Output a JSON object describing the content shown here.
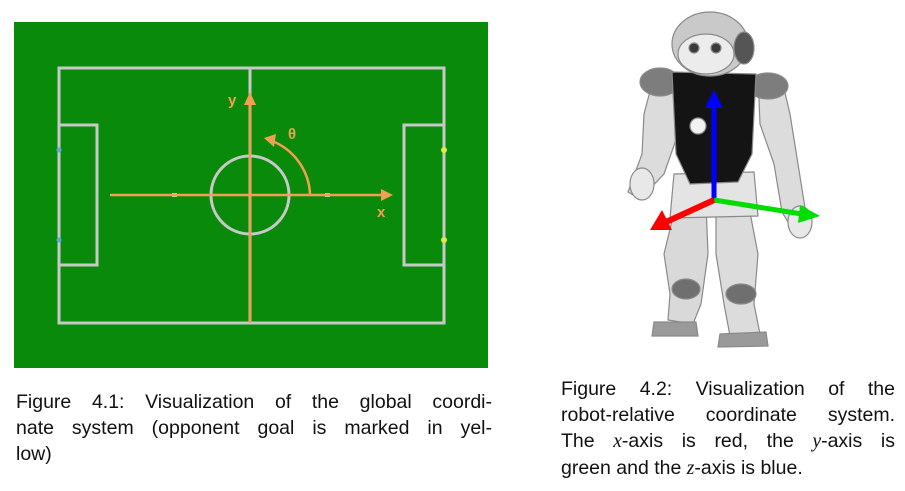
{
  "figure1": {
    "axis_x_label": "x",
    "axis_y_label": "y",
    "angle_label": "θ",
    "colors": {
      "field": "#0a8a0a",
      "lines": "#c8c8c8",
      "axes": "#f0a050",
      "opponent_goal": "#e6e64a",
      "own_goal": "#5fa8d8"
    },
    "caption": {
      "line1": "Figure 4.1:  Visualization of the global coordi-",
      "line2": "nate system (opponent goal is marked in yel-",
      "line3": "low)"
    }
  },
  "figure2": {
    "colors": {
      "x_axis": "#ff0000",
      "y_axis": "#00dd00",
      "z_axis": "#0000ff",
      "robot_body": "#d8d8d8",
      "robot_chest": "#111111"
    },
    "caption": {
      "line1": "Figure 4.2:  Visualization of the",
      "line2": "robot-relative coordinate system.",
      "l3_a": "The ",
      "l3_x": "x",
      "l3_b": "-axis is red, the ",
      "l3_y": "y",
      "l3_c": "-axis is",
      "l4_a": "green and the ",
      "l4_z": "z",
      "l4_b": "-axis is blue."
    }
  }
}
